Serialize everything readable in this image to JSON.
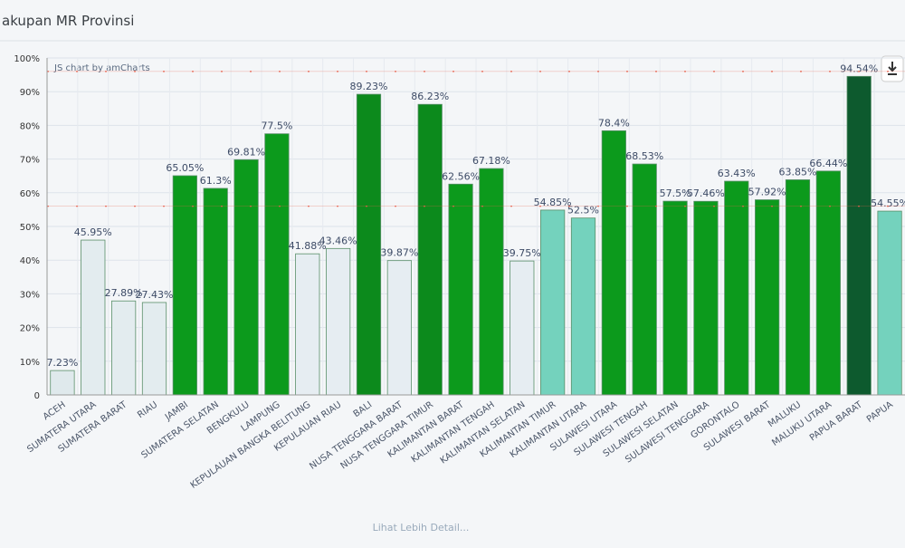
{
  "chart_data": {
    "type": "bar",
    "title": "akupan MR Provinsi",
    "credit": "JS chart by amCharts",
    "footer_link": "Lihat Lebih Detail...",
    "categories": [
      "ACEH",
      "SUMATERA UTARA",
      "SUMATERA BARAT",
      "RIAU",
      "JAMBI",
      "SUMATERA SELATAN",
      "BENGKULU",
      "LAMPUNG",
      "KEPULAUAN BANGKA BELITUNG",
      "KEPULAUAN RIAU",
      "BALI",
      "NUSA TENGGARA BARAT",
      "NUSA TENGGARA TIMUR",
      "KALIMANTAN BARAT",
      "KALIMANTAN TENGAH",
      "KALIMANTAN SELATAN",
      "KALIMANTAN TIMUR",
      "KALIMANTAN UTARA",
      "SULAWESI UTARA",
      "SULAWESI TENGAH",
      "SULAWESI SELATAN",
      "SULAWESI TENGGARA",
      "GORONTALO",
      "SULAWESI BARAT",
      "MALUKU",
      "MALUKU UTARA",
      "PAPUA BARAT",
      "PAPUA"
    ],
    "values": [
      7.23,
      45.95,
      27.89,
      27.43,
      65.05,
      61.3,
      69.81,
      77.5,
      41.88,
      43.46,
      89.23,
      39.87,
      86.23,
      62.56,
      67.18,
      39.75,
      54.85,
      52.5,
      78.4,
      68.53,
      57.5,
      57.46,
      63.43,
      57.92,
      63.85,
      66.44,
      94.54,
      54.55
    ],
    "value_labels": [
      "7.23%",
      "45.95%",
      "27.89%",
      "27.43%",
      "65.05%",
      "61.3%",
      "69.81%",
      "77.5%",
      "41.88%",
      "43.46%",
      "89.23%",
      "39.87%",
      "86.23%",
      "62.56%",
      "67.18%",
      "39.75%",
      "54.85%",
      "52.5%",
      "78.4%",
      "68.53%",
      "57.5%",
      "57.46%",
      "63.43%",
      "57.92%",
      "63.85%",
      "66.44%",
      "94.54%",
      "54.55%"
    ],
    "colors": [
      "#dfe9ec",
      "#e3ecef",
      "#e3ecef",
      "#e3ecef",
      "#0c9a1c",
      "#0c9a1c",
      "#0c9a1c",
      "#0c9a1c",
      "#e6edf2",
      "#e6edf2",
      "#0c8a1c",
      "#e6edf2",
      "#0c8a1c",
      "#0c9a1c",
      "#0c9a1c",
      "#e6edf2",
      "#74d2bd",
      "#74d2bd",
      "#0c9a1c",
      "#0c9a1c",
      "#0c9a1c",
      "#0c9a1c",
      "#0c9a1c",
      "#0c9a1c",
      "#0c9a1c",
      "#0c9a1c",
      "#0d5a2e",
      "#74d2bd"
    ],
    "ylim": [
      0,
      100
    ],
    "yticks": [
      0,
      {
        "value": 10,
        "label": "10%"
      },
      {
        "value": 20,
        "label": "20%"
      },
      {
        "value": 30,
        "label": "30%"
      },
      {
        "value": 40,
        "label": "40%"
      },
      {
        "value": 50,
        "label": "50%"
      },
      {
        "value": 60,
        "label": "60%"
      },
      {
        "value": 70,
        "label": "70%"
      },
      {
        "value": 80,
        "label": "80%"
      },
      {
        "value": 90,
        "label": "90%"
      },
      {
        "value": 100,
        "label": "100%"
      }
    ],
    "reference_lines": [
      96,
      56
    ],
    "reference_color": "#e8604c",
    "grid": true
  }
}
